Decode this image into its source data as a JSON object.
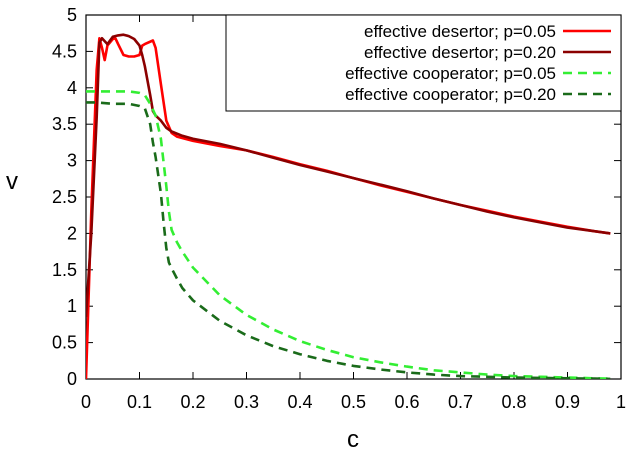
{
  "chart_data": {
    "type": "line",
    "title": "",
    "xlabel": "c",
    "ylabel": "v",
    "xlim": [
      0,
      1
    ],
    "ylim": [
      0,
      5
    ],
    "x_ticks": [
      "0",
      "0.1",
      "0.2",
      "0.3",
      "0.4",
      "0.5",
      "0.6",
      "0.7",
      "0.8",
      "0.9",
      "1"
    ],
    "y_ticks": [
      "0",
      "0.5",
      "1",
      "1.5",
      "2",
      "2.5",
      "3",
      "3.5",
      "4",
      "4.5",
      "5"
    ],
    "grid": false,
    "legend": "top-right",
    "series": [
      {
        "name": "effective desertor; p=0.05",
        "color": "#ff0000",
        "dash": "solid",
        "points": [
          [
            0.0,
            0.0
          ],
          [
            0.01,
            2.3
          ],
          [
            0.02,
            4.25
          ],
          [
            0.025,
            4.68
          ],
          [
            0.03,
            4.55
          ],
          [
            0.035,
            4.38
          ],
          [
            0.04,
            4.58
          ],
          [
            0.05,
            4.67
          ],
          [
            0.055,
            4.68
          ],
          [
            0.06,
            4.6
          ],
          [
            0.07,
            4.45
          ],
          [
            0.08,
            4.43
          ],
          [
            0.09,
            4.43
          ],
          [
            0.1,
            4.45
          ],
          [
            0.105,
            4.58
          ],
          [
            0.11,
            4.6
          ],
          [
            0.125,
            4.65
          ],
          [
            0.13,
            4.55
          ],
          [
            0.14,
            4.05
          ],
          [
            0.15,
            3.55
          ],
          [
            0.16,
            3.38
          ],
          [
            0.17,
            3.33
          ],
          [
            0.2,
            3.27
          ],
          [
            0.25,
            3.2
          ],
          [
            0.3,
            3.14
          ],
          [
            0.35,
            3.05
          ],
          [
            0.4,
            2.95
          ],
          [
            0.45,
            2.86
          ],
          [
            0.5,
            2.76
          ],
          [
            0.55,
            2.66
          ],
          [
            0.6,
            2.57
          ],
          [
            0.65,
            2.48
          ],
          [
            0.7,
            2.39
          ],
          [
            0.75,
            2.31
          ],
          [
            0.8,
            2.23
          ],
          [
            0.85,
            2.16
          ],
          [
            0.9,
            2.09
          ],
          [
            0.95,
            2.03
          ],
          [
            0.98,
            2.0
          ]
        ]
      },
      {
        "name": "effective desertor; p=0.20",
        "color": "#8b0000",
        "dash": "solid",
        "points": [
          [
            0.0,
            0.85
          ],
          [
            0.01,
            2.0
          ],
          [
            0.02,
            3.6
          ],
          [
            0.025,
            4.62
          ],
          [
            0.03,
            4.68
          ],
          [
            0.04,
            4.6
          ],
          [
            0.05,
            4.7
          ],
          [
            0.06,
            4.72
          ],
          [
            0.07,
            4.73
          ],
          [
            0.08,
            4.71
          ],
          [
            0.09,
            4.67
          ],
          [
            0.1,
            4.58
          ],
          [
            0.105,
            4.45
          ],
          [
            0.11,
            4.3
          ],
          [
            0.12,
            3.9
          ],
          [
            0.125,
            3.68
          ],
          [
            0.13,
            3.62
          ],
          [
            0.14,
            3.55
          ],
          [
            0.15,
            3.45
          ],
          [
            0.16,
            3.4
          ],
          [
            0.18,
            3.34
          ],
          [
            0.2,
            3.3
          ],
          [
            0.25,
            3.23
          ],
          [
            0.3,
            3.14
          ],
          [
            0.35,
            3.04
          ],
          [
            0.4,
            2.94
          ],
          [
            0.45,
            2.85
          ],
          [
            0.5,
            2.76
          ],
          [
            0.55,
            2.67
          ],
          [
            0.6,
            2.58
          ],
          [
            0.65,
            2.48
          ],
          [
            0.7,
            2.39
          ],
          [
            0.75,
            2.3
          ],
          [
            0.8,
            2.22
          ],
          [
            0.85,
            2.15
          ],
          [
            0.9,
            2.08
          ],
          [
            0.95,
            2.03
          ],
          [
            0.98,
            2.0
          ]
        ]
      },
      {
        "name": "effective cooperator; p=0.05",
        "color": "#33ee33",
        "dash": "dashed",
        "points": [
          [
            0.0,
            3.95
          ],
          [
            0.02,
            3.95
          ],
          [
            0.05,
            3.95
          ],
          [
            0.08,
            3.95
          ],
          [
            0.1,
            3.93
          ],
          [
            0.11,
            3.9
          ],
          [
            0.12,
            3.78
          ],
          [
            0.13,
            3.62
          ],
          [
            0.14,
            3.3
          ],
          [
            0.15,
            2.65
          ],
          [
            0.155,
            2.3
          ],
          [
            0.16,
            2.05
          ],
          [
            0.17,
            1.88
          ],
          [
            0.18,
            1.75
          ],
          [
            0.2,
            1.53
          ],
          [
            0.25,
            1.15
          ],
          [
            0.3,
            0.88
          ],
          [
            0.35,
            0.68
          ],
          [
            0.4,
            0.52
          ],
          [
            0.45,
            0.4
          ],
          [
            0.5,
            0.3
          ],
          [
            0.55,
            0.23
          ],
          [
            0.6,
            0.17
          ],
          [
            0.65,
            0.12
          ],
          [
            0.7,
            0.09
          ],
          [
            0.75,
            0.06
          ],
          [
            0.8,
            0.04
          ],
          [
            0.85,
            0.03
          ],
          [
            0.9,
            0.02
          ],
          [
            0.95,
            0.01
          ],
          [
            0.98,
            0.005
          ]
        ]
      },
      {
        "name": "effective cooperator; p=0.20",
        "color": "#1a6b1a",
        "dash": "dashed",
        "points": [
          [
            0.0,
            3.8
          ],
          [
            0.02,
            3.8
          ],
          [
            0.05,
            3.78
          ],
          [
            0.08,
            3.78
          ],
          [
            0.1,
            3.75
          ],
          [
            0.11,
            3.72
          ],
          [
            0.12,
            3.5
          ],
          [
            0.125,
            3.25
          ],
          [
            0.13,
            3.05
          ],
          [
            0.14,
            2.55
          ],
          [
            0.145,
            2.15
          ],
          [
            0.15,
            1.8
          ],
          [
            0.155,
            1.6
          ],
          [
            0.16,
            1.52
          ],
          [
            0.17,
            1.38
          ],
          [
            0.18,
            1.25
          ],
          [
            0.2,
            1.08
          ],
          [
            0.25,
            0.8
          ],
          [
            0.3,
            0.6
          ],
          [
            0.35,
            0.45
          ],
          [
            0.4,
            0.34
          ],
          [
            0.45,
            0.25
          ],
          [
            0.5,
            0.18
          ],
          [
            0.55,
            0.13
          ],
          [
            0.6,
            0.09
          ],
          [
            0.65,
            0.06
          ],
          [
            0.7,
            0.04
          ],
          [
            0.75,
            0.03
          ],
          [
            0.8,
            0.02
          ],
          [
            0.85,
            0.015
          ],
          [
            0.9,
            0.01
          ],
          [
            0.95,
            0.005
          ],
          [
            0.98,
            0.002
          ]
        ]
      }
    ]
  }
}
